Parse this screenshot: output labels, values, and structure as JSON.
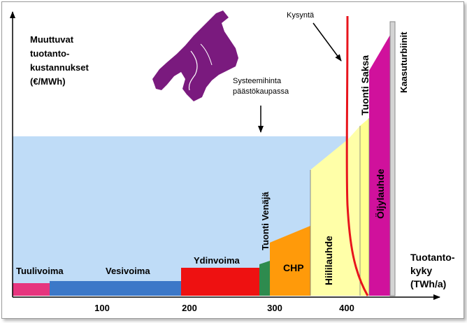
{
  "y_axis_label": {
    "lines": [
      "Muuttuvat",
      "tuotanto-",
      "kustannukset",
      "(€/MWh)"
    ]
  },
  "x_axis_label": {
    "lines": [
      "Tuotanto-",
      "kyky",
      "(TWh/a)"
    ]
  },
  "x_ticks": [
    "100",
    "200",
    "300",
    "400"
  ],
  "annotations": {
    "system_price_lines": [
      "Systeemihinta",
      "päästökaupassa"
    ],
    "demand": "Kysyntä"
  },
  "blocks": {
    "wind": "Tuulivoima",
    "hydro": "Vesivoima",
    "nuclear": "Ydinvoima",
    "import_russia": "Tuonti Venäjä",
    "chp": "CHP",
    "coal_condensing": "Hiililauhde",
    "import_germany": "Tuonti Saksa",
    "oil_condensing": "Öljylauhde",
    "gas_turbines": "Kaasuturbiinit"
  },
  "colors": {
    "system_price_area": "#bfdcf7",
    "wind": "#e6357e",
    "hydro": "#3c78c8",
    "nuclear": "#ee1111",
    "import_russia": "#2e8b4e",
    "chp": "#ff9a0a",
    "coal_condensing": "#ffffa8",
    "import_germany": "#ffff90",
    "oil_condensing": "#d0119c",
    "gas_turbines": "#d4d4d4",
    "demand_curve": "#e8141c",
    "map": "#7a1a7e"
  }
}
